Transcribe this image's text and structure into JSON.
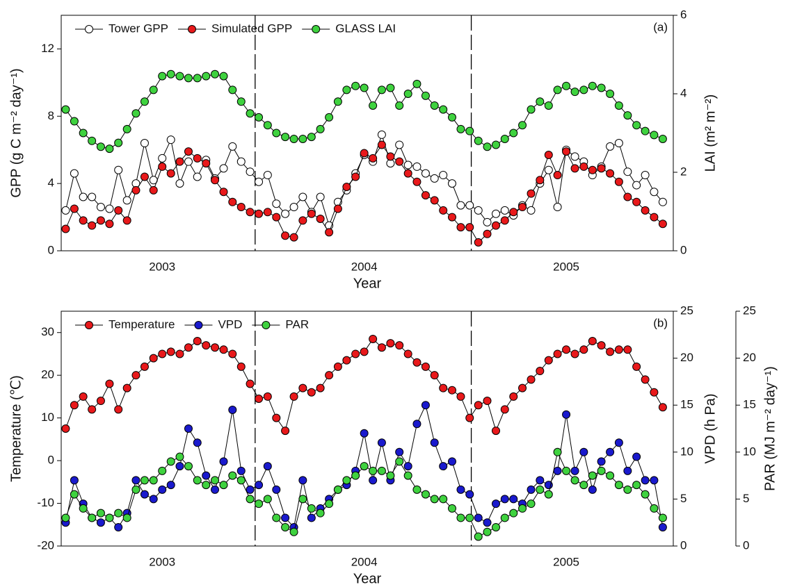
{
  "chart_data": [
    {
      "type": "line",
      "annotation": "(a)",
      "xlabel": "Year",
      "ylabel": "GPP (g C m⁻² day⁻¹)",
      "y2label": "LAI (m² m⁻²)",
      "xlim": [
        2003,
        2006.03
      ],
      "xticks": [
        {
          "value": 2003.5,
          "label": "2003"
        },
        {
          "value": 2004.5,
          "label": "2004"
        },
        {
          "value": 2005.5,
          "label": "2005"
        }
      ],
      "ylim": [
        0,
        14
      ],
      "yticks": [
        0,
        4,
        8,
        12
      ],
      "y2lim": [
        0,
        6
      ],
      "y2ticks": [
        0,
        2,
        4,
        6
      ],
      "dividers": [
        2003.96,
        2005.03
      ],
      "legend": "top-left",
      "x": [
        2003.022,
        2003.065,
        2003.109,
        2003.152,
        2003.196,
        2003.239,
        2003.283,
        2003.326,
        2003.37,
        2003.413,
        2003.457,
        2003.5,
        2003.543,
        2003.587,
        2003.63,
        2003.674,
        2003.717,
        2003.761,
        2003.804,
        2003.848,
        2003.891,
        2003.935,
        2003.978,
        2004.022,
        2004.065,
        2004.109,
        2004.152,
        2004.196,
        2004.239,
        2004.283,
        2004.326,
        2004.37,
        2004.413,
        2004.457,
        2004.5,
        2004.543,
        2004.587,
        2004.63,
        2004.674,
        2004.717,
        2004.761,
        2004.804,
        2004.848,
        2004.891,
        2004.935,
        2004.978,
        2005.022,
        2005.065,
        2005.109,
        2005.152,
        2005.196,
        2005.239,
        2005.283,
        2005.326,
        2005.37,
        2005.413,
        2005.457,
        2005.5,
        2005.543,
        2005.587,
        2005.63,
        2005.674,
        2005.717,
        2005.761,
        2005.804,
        2005.848,
        2005.891,
        2005.935,
        2005.978
      ],
      "series": [
        {
          "name": "Tower GPP",
          "color": "#ffffff",
          "axis": "y",
          "values": [
            2.4,
            4.6,
            3.2,
            3.2,
            2.6,
            2.5,
            4.8,
            3.0,
            4.0,
            6.4,
            4.2,
            5.5,
            6.6,
            4.0,
            5.3,
            4.4,
            5.4,
            4.3,
            4.9,
            6.2,
            5.3,
            4.7,
            4.1,
            4.5,
            2.8,
            2.2,
            2.6,
            3.2,
            2.3,
            3.2,
            1.5,
            2.9,
            3.6,
            4.6,
            5.7,
            5.3,
            6.9,
            5.2,
            6.3,
            5.1,
            5.0,
            4.6,
            4.3,
            4.5,
            4.0,
            2.7,
            2.7,
            2.4,
            1.7,
            2.2,
            2.4,
            2.1,
            2.7,
            2.4,
            4.0,
            4.8,
            2.6,
            6.0,
            5.6,
            5.3,
            4.5,
            5.0,
            6.2,
            6.4,
            4.7,
            3.9,
            4.5,
            3.5,
            2.9
          ]
        },
        {
          "name": "Simulated GPP",
          "color": "#e8191b",
          "axis": "y",
          "values": [
            1.3,
            2.5,
            1.8,
            1.5,
            1.8,
            1.6,
            2.4,
            1.8,
            3.6,
            4.4,
            3.6,
            5.0,
            4.6,
            5.3,
            5.9,
            5.5,
            5.2,
            4.2,
            3.5,
            2.9,
            2.6,
            2.3,
            2.2,
            2.3,
            2.0,
            0.9,
            0.8,
            1.8,
            2.2,
            1.9,
            1.1,
            2.5,
            3.8,
            4.4,
            5.8,
            5.5,
            6.3,
            5.6,
            5.3,
            4.6,
            4.1,
            3.3,
            3.0,
            2.4,
            2.0,
            1.4,
            1.4,
            0.5,
            1.0,
            1.5,
            1.8,
            2.3,
            2.6,
            3.4,
            4.2,
            5.7,
            4.5,
            5.9,
            4.9,
            5.0,
            4.8,
            4.9,
            4.6,
            4.1,
            3.2,
            2.9,
            2.4,
            2.0,
            1.6
          ]
        },
        {
          "name": "GLASS LAI",
          "color": "#3fd23f",
          "axis": "y2",
          "values": [
            3.6,
            3.3,
            3.0,
            2.8,
            2.65,
            2.6,
            2.75,
            3.1,
            3.5,
            3.8,
            4.1,
            4.45,
            4.5,
            4.45,
            4.4,
            4.4,
            4.45,
            4.5,
            4.45,
            4.1,
            3.8,
            3.5,
            3.4,
            3.2,
            3.0,
            2.9,
            2.85,
            2.85,
            2.9,
            3.1,
            3.4,
            3.8,
            4.1,
            4.2,
            4.15,
            3.7,
            4.1,
            4.15,
            3.7,
            4.0,
            4.25,
            3.95,
            3.7,
            3.6,
            3.4,
            3.1,
            3.05,
            2.8,
            2.65,
            2.7,
            2.85,
            3.0,
            3.2,
            3.6,
            3.8,
            3.7,
            4.1,
            4.2,
            4.05,
            4.1,
            4.2,
            4.15,
            4.0,
            3.7,
            3.45,
            3.2,
            3.05,
            2.95,
            2.85
          ]
        }
      ]
    },
    {
      "type": "line",
      "annotation": "(b)",
      "xlabel": "Year",
      "ylabel": "Temperature (℃)",
      "y2label": "VPD (h Pa)",
      "y3label": "PAR (MJ m⁻² day⁻¹)",
      "xlim": [
        2003,
        2006.03
      ],
      "xticks": [
        {
          "value": 2003.5,
          "label": "2003"
        },
        {
          "value": 2004.5,
          "label": "2004"
        },
        {
          "value": 2005.5,
          "label": "2005"
        }
      ],
      "ylim": [
        -20,
        35
      ],
      "yticks": [
        -20,
        -10,
        0,
        10,
        20,
        30
      ],
      "y2lim": [
        0,
        25
      ],
      "y2ticks": [
        0,
        5,
        10,
        15,
        20,
        25
      ],
      "y3lim": [
        0,
        25
      ],
      "y3ticks": [
        0,
        5,
        10,
        15,
        20,
        25
      ],
      "dividers": [
        2003.96,
        2005.03
      ],
      "legend": "top-left",
      "x": [
        2003.022,
        2003.065,
        2003.109,
        2003.152,
        2003.196,
        2003.239,
        2003.283,
        2003.326,
        2003.37,
        2003.413,
        2003.457,
        2003.5,
        2003.543,
        2003.587,
        2003.63,
        2003.674,
        2003.717,
        2003.761,
        2003.804,
        2003.848,
        2003.891,
        2003.935,
        2003.978,
        2004.022,
        2004.065,
        2004.109,
        2004.152,
        2004.196,
        2004.239,
        2004.283,
        2004.326,
        2004.37,
        2004.413,
        2004.457,
        2004.5,
        2004.543,
        2004.587,
        2004.63,
        2004.674,
        2004.717,
        2004.761,
        2004.804,
        2004.848,
        2004.891,
        2004.935,
        2004.978,
        2005.022,
        2005.065,
        2005.109,
        2005.152,
        2005.196,
        2005.239,
        2005.283,
        2005.326,
        2005.37,
        2005.413,
        2005.457,
        2005.5,
        2005.543,
        2005.587,
        2005.63,
        2005.674,
        2005.717,
        2005.761,
        2005.804,
        2005.848,
        2005.891,
        2005.935,
        2005.978
      ],
      "series": [
        {
          "name": "Temperature",
          "color": "#e8191b",
          "axis": "y",
          "values": [
            7.5,
            13,
            15,
            12,
            14,
            18,
            12,
            17,
            20,
            22,
            24,
            25,
            25.5,
            25,
            26.5,
            28,
            27,
            26.5,
            26,
            25,
            22,
            18,
            14.5,
            15,
            10,
            7,
            15,
            17,
            16,
            17,
            20,
            22,
            23.5,
            25,
            25.5,
            28.5,
            26.5,
            27.5,
            27,
            25,
            23,
            22,
            20,
            17,
            16.5,
            15,
            10,
            13,
            14,
            7,
            12,
            15,
            17,
            19,
            21,
            23.5,
            25,
            26,
            25,
            26,
            28,
            27,
            25.5,
            26,
            26,
            22,
            19,
            16,
            12.5
          ]
        },
        {
          "name": "VPD",
          "color": "#1a1acd",
          "axis": "y2",
          "values": [
            2.5,
            7,
            4.5,
            3,
            2.5,
            3,
            2,
            3.5,
            7,
            5.5,
            5,
            6,
            6.5,
            8.5,
            12.5,
            11,
            7.5,
            6,
            9,
            14.5,
            8,
            6,
            6.5,
            8.5,
            6,
            3,
            2,
            7,
            3,
            4,
            5,
            6,
            6.5,
            8,
            12,
            7,
            11,
            7,
            10,
            8.5,
            13,
            15,
            11,
            8.5,
            9,
            6,
            5.5,
            3,
            2.5,
            4.5,
            5,
            5,
            4.5,
            6,
            7,
            6.5,
            8,
            14,
            8,
            10,
            6,
            9,
            10,
            11,
            8,
            9.5,
            7,
            7,
            2
          ]
        },
        {
          "name": "PAR",
          "color": "#3fd23f",
          "axis": "y3",
          "values": [
            3,
            5.5,
            4,
            3,
            3.5,
            3,
            3.5,
            3,
            6,
            7,
            7,
            8,
            9,
            9.5,
            8.5,
            7,
            6.5,
            7,
            6.5,
            7.5,
            7,
            5,
            4.5,
            5,
            3,
            2,
            1.5,
            5,
            4,
            3.5,
            4.5,
            6,
            7,
            7.5,
            8.5,
            8,
            8,
            7.5,
            9,
            7.5,
            6,
            5.5,
            5,
            5,
            4,
            3,
            3,
            1,
            1.5,
            2,
            3,
            3.5,
            4,
            4.5,
            6,
            5.5,
            10,
            8,
            7,
            6.5,
            7.5,
            8,
            7.5,
            6.5,
            6,
            6.5,
            5.5,
            4,
            3
          ]
        }
      ]
    }
  ]
}
